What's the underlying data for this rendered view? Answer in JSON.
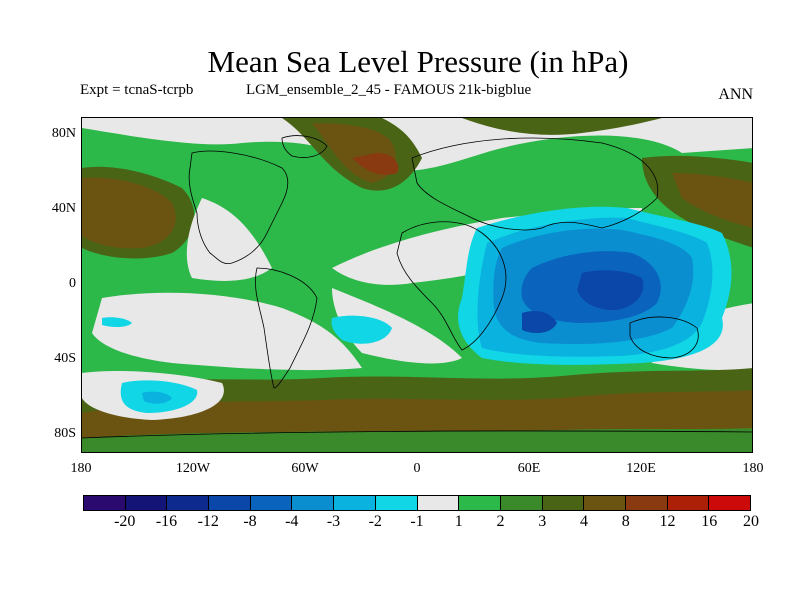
{
  "title": "Mean Sea Level Pressure (in hPa)",
  "expt": "Expt = tcnaS-tcrpb",
  "run": "LGM_ensemble_2_45 - FAMOUS 21k-bigblue",
  "season": "ANN",
  "lat_labels": [
    "80N",
    "40N",
    "0",
    "40S",
    "80S"
  ],
  "lon_labels": [
    "180",
    "120W",
    "60W",
    "0",
    "60E",
    "120E",
    "180"
  ],
  "colorbar": {
    "labels": [
      "-20",
      "-16",
      "-12",
      "-8",
      "-4",
      "-3",
      "-2",
      "-1",
      "1",
      "2",
      "3",
      "4",
      "8",
      "12",
      "16",
      "20"
    ],
    "colors": [
      "#2a0a6e",
      "#141477",
      "#0d2a8f",
      "#0b47a8",
      "#0a64bd",
      "#0a8ecf",
      "#0ab2e0",
      "#11d6e6",
      "#e8e8e8",
      "#2db84a",
      "#3a8a2c",
      "#4a6415",
      "#6b5412",
      "#8a3a10",
      "#ad2008",
      "#cc0a0a"
    ]
  },
  "palette": {
    "neutral": "#e8e8e8",
    "green": "#2db84a",
    "darkgreen": "#3a8a2c",
    "olive": "#4a6415",
    "brown": "#6b5412",
    "red_brown": "#8a3a10",
    "cyan": "#11d6e6",
    "light_blue": "#0ab2e0",
    "mid_blue": "#0a8ecf",
    "blue": "#0a64bd",
    "dark_blue": "#0b47a8"
  }
}
